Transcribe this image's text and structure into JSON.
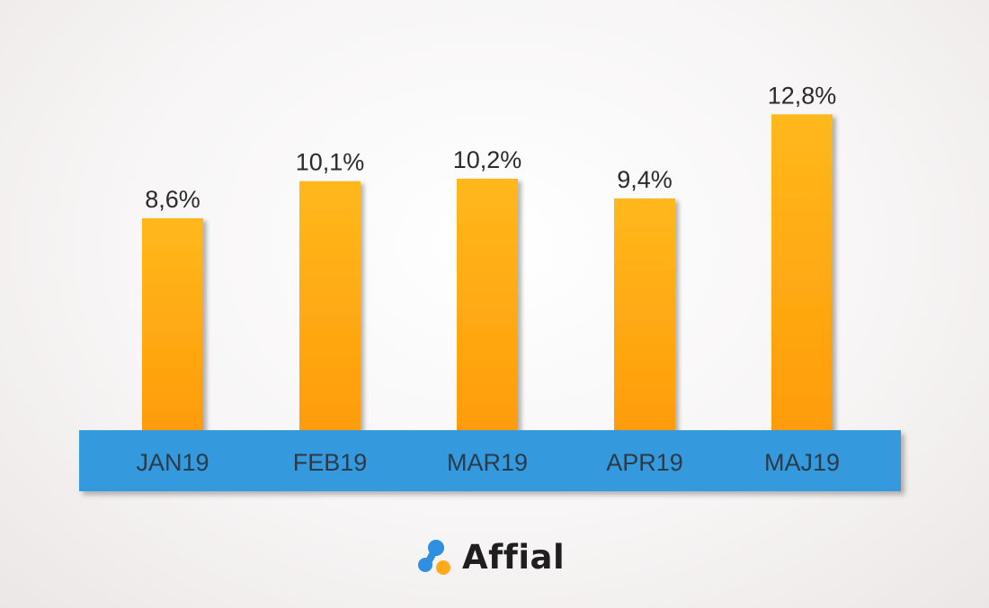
{
  "chart_data": {
    "type": "bar",
    "categories": [
      "JAN19",
      "FEB19",
      "MAR19",
      "APR19",
      "MAJ19"
    ],
    "values": [
      8.6,
      10.1,
      10.2,
      9.4,
      12.8
    ],
    "value_labels": [
      "8,6%",
      "10,1%",
      "10,2%",
      "9,4%",
      "12,8%"
    ],
    "ylim": [
      0,
      16.15
    ],
    "grid": false,
    "colors": {
      "bar_top": "#ffb81c",
      "bar_bottom": "#ff9c0a",
      "axis_band": "#3499dd",
      "axis_band_shadow": "#c9c4c4"
    }
  },
  "brand": {
    "name": "Affial",
    "colors": {
      "blue": "#2f8fe0",
      "orange": "#ffab1a"
    }
  }
}
